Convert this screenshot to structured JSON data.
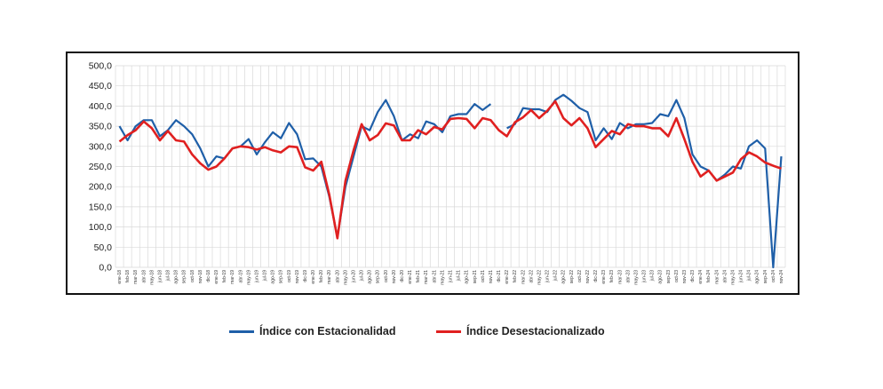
{
  "chart_data": {
    "type": "line",
    "title": "",
    "xlabel": "",
    "ylabel": "",
    "ylim": [
      0,
      500
    ],
    "yticks": [
      "500,0",
      "450,0",
      "400,0",
      "350,0",
      "300,0",
      "250,0",
      "200,0",
      "150,0",
      "100,0",
      "50,0",
      "0,0"
    ],
    "ytick_values": [
      500,
      450,
      400,
      350,
      300,
      250,
      200,
      150,
      100,
      50,
      0
    ],
    "grid": true,
    "legend_position": "bottom",
    "x": [
      "ene-18",
      "feb-18",
      "mar-18",
      "abr-18",
      "may-18",
      "jun-18",
      "jul-18",
      "ago-18",
      "sep-18",
      "oct-18",
      "nov-18",
      "dic-18",
      "ene-19",
      "feb-19",
      "mar-19",
      "abr-19",
      "may-19",
      "jun-19",
      "jul-19",
      "ago-19",
      "sep-19",
      "oct-19",
      "nov-19",
      "dic-19",
      "ene-20",
      "feb-20",
      "mar-20",
      "abr-20",
      "may-20",
      "jun-20",
      "jul-20",
      "ago-20",
      "sep-20",
      "oct-20",
      "nov-20",
      "dic-20",
      "ene-21",
      "feb-21",
      "mar-21",
      "abr-21",
      "may-21",
      "jun-21",
      "jul-21",
      "ago-21",
      "sep-21",
      "oct-21",
      "nov-21",
      "dic-21",
      "ene-22",
      "feb-22",
      "mar-22",
      "abr-22",
      "may-22",
      "jun-22",
      "jul-22",
      "ago-22",
      "sep-22",
      "oct-22",
      "nov-22",
      "dic-22",
      "ene-23",
      "feb-23",
      "mar-23",
      "abr-23",
      "may-23",
      "jun-23",
      "jul-23",
      "ago-23",
      "sep-23",
      "oct-23",
      "nov-23",
      "dic-23",
      "ene-24",
      "feb-24",
      "mar-24",
      "abr-24",
      "may-24",
      "jun-24",
      "jul-24",
      "ago-24",
      "sep-24",
      "oct-24",
      "nov-24"
    ],
    "series": [
      {
        "name": "Índice con Estacionalidad",
        "color": "#1f5fa8",
        "values": [
          350,
          315,
          350,
          365,
          365,
          325,
          340,
          365,
          350,
          330,
          295,
          250,
          275,
          270,
          295,
          300,
          318,
          280,
          310,
          335,
          320,
          358,
          330,
          268,
          270,
          250,
          175,
          75,
          200,
          275,
          350,
          340,
          385,
          415,
          375,
          315,
          330,
          320,
          362,
          355,
          335,
          375,
          380,
          380,
          405,
          390,
          405,
          null,
          345,
          355,
          395,
          392,
          392,
          385,
          415,
          428,
          413,
          395,
          385,
          315,
          345,
          318,
          358,
          345,
          355,
          355,
          358,
          380,
          375,
          415,
          370,
          280,
          250,
          240,
          215,
          230,
          250,
          245,
          300,
          315,
          295,
          0,
          275
        ]
      },
      {
        "name": "Índice Desestacionalizado",
        "color": "#e02020",
        "values": [
          312,
          328,
          340,
          362,
          345,
          315,
          338,
          315,
          312,
          280,
          258,
          242,
          250,
          270,
          295,
          300,
          298,
          292,
          298,
          290,
          285,
          300,
          298,
          248,
          240,
          262,
          180,
          72,
          215,
          290,
          355,
          315,
          328,
          357,
          352,
          315,
          315,
          340,
          330,
          348,
          342,
          368,
          370,
          368,
          345,
          370,
          365,
          340,
          325,
          360,
          372,
          390,
          370,
          388,
          412,
          370,
          352,
          370,
          345,
          298,
          318,
          338,
          330,
          355,
          350,
          350,
          345,
          345,
          325,
          370,
          318,
          262,
          225,
          240,
          215,
          225,
          235,
          268,
          285,
          275,
          260,
          252,
          245
        ]
      }
    ]
  }
}
